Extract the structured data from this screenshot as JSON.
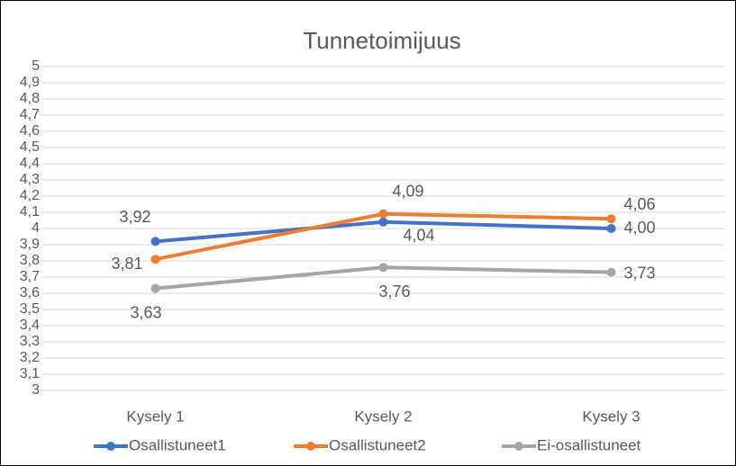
{
  "chart_data": {
    "type": "line",
    "title": "Tunnetoimijuus",
    "categories": [
      "Kysely 1",
      "Kysely 2",
      "Kysely 3"
    ],
    "series": [
      {
        "name": "Osallistuneet1",
        "color": "#4472c4",
        "values": [
          3.92,
          4.04,
          4.0
        ],
        "value_labels": [
          "3,92",
          "4,04",
          "4,00"
        ]
      },
      {
        "name": "Osallistuneet2",
        "color": "#ed7d31",
        "values": [
          3.81,
          4.09,
          4.06
        ],
        "value_labels": [
          "3,81",
          "4,09",
          "4,06"
        ]
      },
      {
        "name": "Ei-osallistuneet",
        "color": "#a5a5a5",
        "values": [
          3.63,
          3.76,
          3.73
        ],
        "value_labels": [
          "3,63",
          "3,76",
          "3,73"
        ]
      }
    ],
    "ylim": [
      3,
      5
    ],
    "yticks": [
      3,
      {
        "value": 3.1,
        "label": "3,1"
      },
      {
        "value": 3.2,
        "label": "3,2"
      },
      {
        "value": 3.3,
        "label": "3,3"
      },
      {
        "value": 3.4,
        "label": "3,4"
      },
      {
        "value": 3.5,
        "label": "3,5"
      },
      {
        "value": 3.6,
        "label": "3,6"
      },
      {
        "value": 3.7,
        "label": "3,7"
      },
      {
        "value": 3.8,
        "label": "3,8"
      },
      {
        "value": 3.9,
        "label": "3,9"
      },
      4,
      {
        "value": 4.1,
        "label": "4,1"
      },
      {
        "value": 4.2,
        "label": "4,2"
      },
      {
        "value": 4.3,
        "label": "4,3"
      },
      {
        "value": 4.4,
        "label": "4,4"
      },
      {
        "value": 4.5,
        "label": "4,5"
      },
      {
        "value": 4.6,
        "label": "4,6"
      },
      {
        "value": 4.7,
        "label": "4,7"
      },
      {
        "value": 4.8,
        "label": "4,8"
      },
      {
        "value": 4.9,
        "label": "4,9"
      },
      5
    ],
    "grid": true,
    "legend": "bottom"
  }
}
